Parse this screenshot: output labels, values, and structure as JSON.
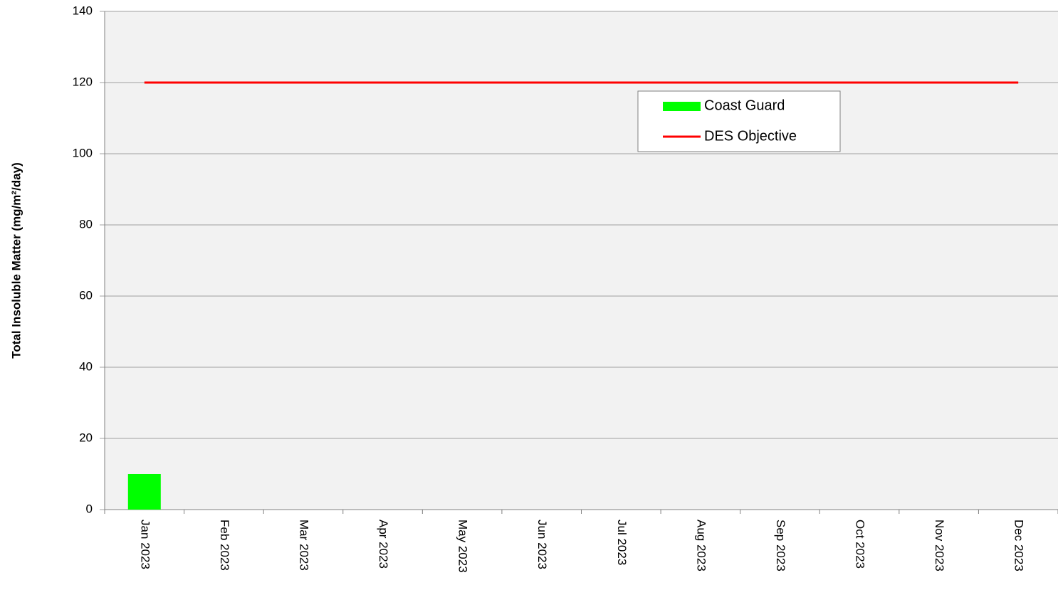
{
  "chart_data": {
    "type": "bar",
    "y_label": "Total Insoluble Matter (mg/m²/day)",
    "categories": [
      "Jan 2023",
      "Feb 2023",
      "Mar 2023",
      "Apr 2023",
      "May 2023",
      "Jun 2023",
      "Jul 2023",
      "Aug 2023",
      "Sep 2023",
      "Oct 2023",
      "Nov 2023",
      "Dec 2023"
    ],
    "series": [
      {
        "name": "Coast Guard",
        "type": "bar",
        "color": "#00ff00",
        "values": [
          10,
          null,
          null,
          null,
          null,
          null,
          null,
          null,
          null,
          null,
          null,
          null
        ]
      },
      {
        "name": "DES Objective",
        "type": "line",
        "color": "#ff0000",
        "values": [
          120,
          120,
          120,
          120,
          120,
          120,
          120,
          120,
          120,
          120,
          120,
          120
        ]
      }
    ],
    "ylim": [
      0,
      140
    ],
    "yticks": [
      0,
      20,
      40,
      60,
      80,
      100,
      120,
      140
    ],
    "grid": true
  }
}
